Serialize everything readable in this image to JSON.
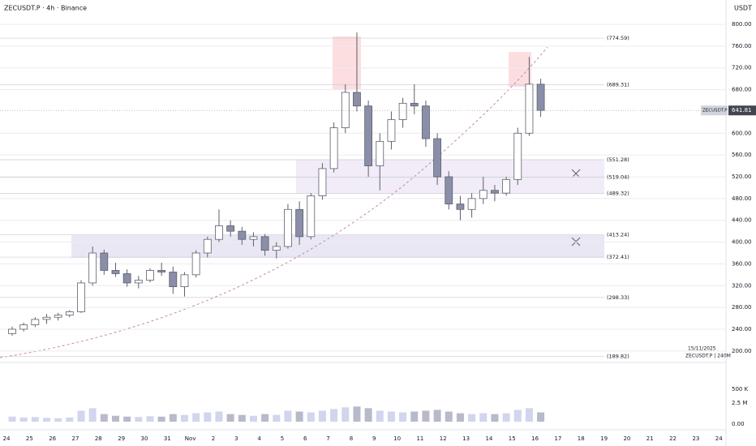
{
  "chart_data": {
    "type": "candlestick",
    "title": "ZECUSDT.P · 4h · Binance",
    "currency": "USDT",
    "up_color": "#ffffff",
    "down_color": "#8a8ea8",
    "outline_color": "#5d606b",
    "x_labels": [
      "24",
      "25",
      "26",
      "27",
      "28",
      "29",
      "30",
      "31",
      "Nov",
      "2",
      "3",
      "4",
      "5",
      "6",
      "7",
      "8",
      "9",
      "10",
      "11",
      "12",
      "13",
      "14",
      "15",
      "16",
      "17",
      "18",
      "19",
      "20",
      "21",
      "22",
      "23",
      "24"
    ],
    "open": [
      232,
      240,
      248,
      258,
      262,
      266,
      272,
      325,
      380,
      348,
      342,
      325,
      330,
      348,
      345,
      318,
      340,
      380,
      405,
      430,
      420,
      405,
      410,
      385,
      392,
      460,
      410,
      485,
      535,
      610,
      675,
      650,
      540,
      585,
      625,
      655,
      650,
      590,
      520,
      470,
      460,
      480,
      495,
      490,
      515,
      600,
      690
    ],
    "high": [
      245,
      252,
      262,
      268,
      270,
      275,
      330,
      392,
      386,
      362,
      350,
      338,
      352,
      362,
      355,
      345,
      385,
      410,
      460,
      440,
      428,
      418,
      415,
      400,
      470,
      475,
      490,
      545,
      620,
      690,
      785,
      660,
      600,
      640,
      665,
      690,
      660,
      600,
      530,
      485,
      490,
      520,
      505,
      520,
      610,
      740,
      700
    ],
    "low": [
      228,
      236,
      244,
      250,
      256,
      262,
      270,
      320,
      340,
      336,
      318,
      315,
      326,
      338,
      305,
      300,
      335,
      372,
      400,
      410,
      395,
      392,
      375,
      370,
      388,
      395,
      405,
      478,
      528,
      600,
      640,
      520,
      495,
      570,
      610,
      635,
      575,
      505,
      460,
      440,
      445,
      470,
      475,
      485,
      505,
      595,
      630
    ],
    "close": [
      240,
      248,
      258,
      262,
      266,
      272,
      325,
      380,
      348,
      342,
      325,
      330,
      348,
      345,
      318,
      340,
      380,
      405,
      430,
      420,
      405,
      410,
      385,
      392,
      460,
      410,
      485,
      535,
      610,
      675,
      650,
      540,
      585,
      625,
      655,
      650,
      590,
      520,
      470,
      460,
      480,
      495,
      490,
      515,
      600,
      690,
      641.81
    ],
    "volume": [
      600000,
      500000,
      550000,
      450000,
      400000,
      500000,
      1300000,
      1600000,
      900000,
      700000,
      600000,
      550000,
      650000,
      600000,
      900000,
      800000,
      1000000,
      1100000,
      1200000,
      900000,
      800000,
      700000,
      900000,
      800000,
      1300000,
      1200000,
      1100000,
      1300000,
      1500000,
      1700000,
      1800000,
      1600000,
      1300000,
      1200000,
      1100000,
      1200000,
      1300000,
      1400000,
      1200000,
      1000000,
      900000,
      1000000,
      900000,
      1000000,
      1400000,
      1600000,
      1100000
    ],
    "ylim": [
      155,
      828
    ],
    "yticks": [
      {
        "value": 800,
        "label": "800.00"
      },
      {
        "value": 760,
        "label": "760.00"
      },
      {
        "value": 720,
        "label": "720.00"
      },
      {
        "value": 680,
        "label": "680.00"
      },
      {
        "value": 600,
        "label": "600.00"
      },
      {
        "value": 560,
        "label": "560.00"
      },
      {
        "value": 520,
        "label": "520.00"
      },
      {
        "value": 480,
        "label": "480.00"
      },
      {
        "value": 440,
        "label": "440.00"
      },
      {
        "value": 400,
        "label": "400.00"
      },
      {
        "value": 360,
        "label": "360.00"
      },
      {
        "value": 320,
        "label": "320.00"
      },
      {
        "value": 280,
        "label": "280.00"
      },
      {
        "value": 240,
        "label": "240.00"
      },
      {
        "value": 200,
        "label": "200.00"
      }
    ],
    "volume_ticks": [
      {
        "value": 2500000,
        "label": "2.5 M"
      },
      {
        "value": 0,
        "label": "0.00"
      }
    ],
    "indicator_label": "500 K",
    "last_price": {
      "symbol": "ZECUSDT.P",
      "value": 641.81,
      "label": "641.81"
    },
    "levels": [
      {
        "value": 774.59,
        "label": "(774.59)",
        "color": "#7e57c2"
      },
      {
        "value": 689.31,
        "label": "(689.31)",
        "color": "#f23645"
      },
      {
        "value": 551.28,
        "label": "(551.28)",
        "color": "#c2185b"
      },
      {
        "value": 519.04,
        "label": "(519.04)",
        "color": "#f23645"
      },
      {
        "value": 489.32,
        "label": "(489.32)",
        "color": "#7e57c2"
      },
      {
        "value": 413.24,
        "label": "(413.24)",
        "color": "#7e57c2"
      },
      {
        "value": 372.41,
        "label": "(372.41)",
        "color": "#f23645"
      },
      {
        "value": 298.33,
        "label": "(298.33)",
        "color": "#7e57c2"
      },
      {
        "value": 189.82,
        "label": "(189.82)",
        "color": "#7e57c2"
      }
    ],
    "footer_date": "15/11/2025",
    "footer_symbol": "ZECUSDT.P | 240M"
  }
}
